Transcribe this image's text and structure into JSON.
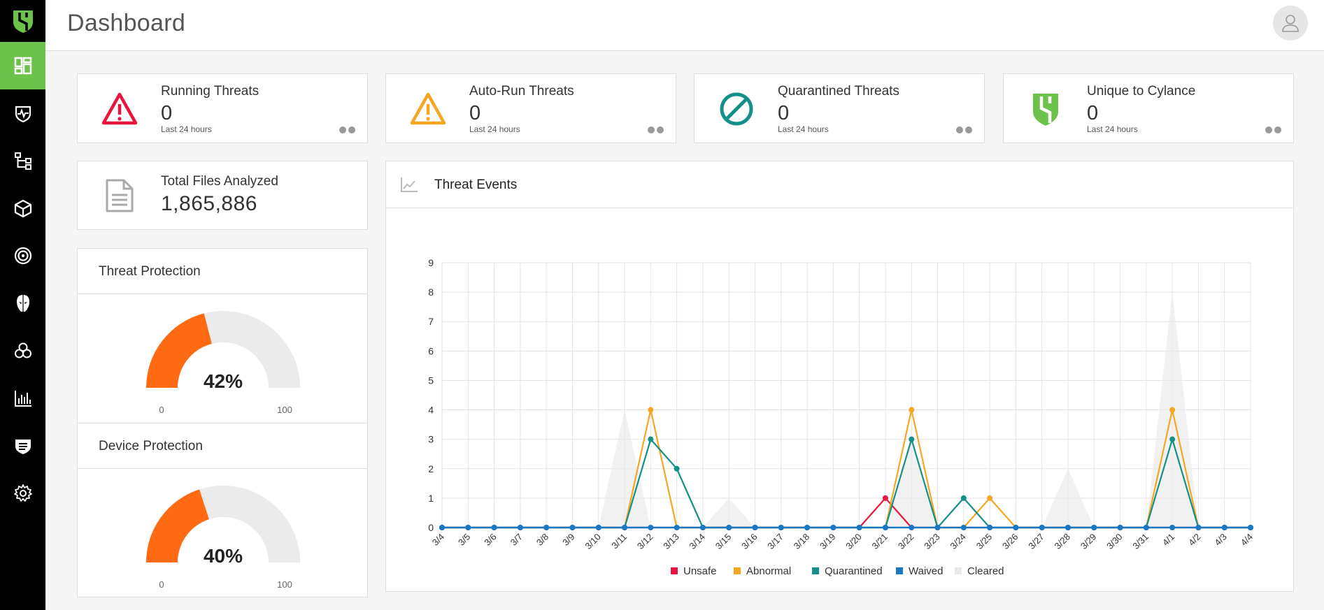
{
  "header": {
    "title": "Dashboard"
  },
  "sidebar": {
    "items": [
      {
        "name": "dashboard",
        "icon": "dashboard-icon",
        "active": true
      },
      {
        "name": "protection",
        "icon": "shield-pulse-icon"
      },
      {
        "name": "assets",
        "icon": "network-tree-icon"
      },
      {
        "name": "devices",
        "icon": "cube-icon"
      },
      {
        "name": "policies",
        "icon": "target-icon"
      },
      {
        "name": "threat-intelligence",
        "icon": "hacker-mask-icon"
      },
      {
        "name": "biohazard",
        "icon": "biohazard-icon"
      },
      {
        "name": "reports",
        "icon": "bar-chart-icon"
      },
      {
        "name": "lists",
        "icon": "shield-list-icon"
      },
      {
        "name": "settings",
        "icon": "gear-icon"
      }
    ]
  },
  "stats": [
    {
      "title": "Running Threats",
      "value": "0",
      "sub": "Last 24 hours",
      "icon": "warning-icon",
      "color": "#e8163e"
    },
    {
      "title": "Auto-Run Threats",
      "value": "0",
      "sub": "Last 24 hours",
      "icon": "warning-icon",
      "color": "#f5a623"
    },
    {
      "title": "Quarantined Threats",
      "value": "0",
      "sub": "Last 24 hours",
      "icon": "prohibited-icon",
      "color": "#149088"
    },
    {
      "title": "Unique to Cylance",
      "value": "0",
      "sub": "Last 24 hours",
      "icon": "cylance-shield-icon",
      "color": "#6cc24a"
    }
  ],
  "files": {
    "title": "Total Files Analyzed",
    "value": "1,865,886"
  },
  "gauges": [
    {
      "title": "Threat Protection",
      "value": 42,
      "label": "42%",
      "min": "0",
      "max": "100"
    },
    {
      "title": "Device Protection",
      "value": 40,
      "label": "40%",
      "min": "0",
      "max": "100"
    }
  ],
  "colors": {
    "gauge_fill": "#ff6a13",
    "gauge_track": "#ebebeb",
    "accent": "#6cc24a"
  },
  "chart_data": {
    "type": "line",
    "title": "Threat Events",
    "categories": [
      "3/4",
      "3/5",
      "3/6",
      "3/7",
      "3/8",
      "3/9",
      "3/10",
      "3/11",
      "3/12",
      "3/13",
      "3/14",
      "3/15",
      "3/16",
      "3/17",
      "3/18",
      "3/19",
      "3/20",
      "3/21",
      "3/22",
      "3/23",
      "3/24",
      "3/25",
      "3/26",
      "3/27",
      "3/28",
      "3/29",
      "3/30",
      "3/31",
      "4/1",
      "4/2",
      "4/3",
      "4/4"
    ],
    "ylim": [
      0,
      9
    ],
    "yticks": [
      0,
      1,
      2,
      3,
      4,
      5,
      6,
      7,
      8,
      9
    ],
    "grid": true,
    "legend_position": "bottom",
    "series": [
      {
        "name": "Unsafe",
        "color": "#e8163e",
        "values": [
          0,
          0,
          0,
          0,
          0,
          0,
          0,
          0,
          0,
          0,
          0,
          0,
          0,
          0,
          0,
          0,
          0,
          1,
          0,
          0,
          0,
          0,
          0,
          0,
          0,
          0,
          0,
          0,
          0,
          0,
          0,
          0
        ]
      },
      {
        "name": "Abnormal",
        "color": "#f5a623",
        "values": [
          0,
          0,
          0,
          0,
          0,
          0,
          0,
          0,
          4,
          0,
          0,
          0,
          0,
          0,
          0,
          0,
          0,
          0,
          4,
          0,
          0,
          1,
          0,
          0,
          0,
          0,
          0,
          0,
          4,
          0,
          0,
          0
        ]
      },
      {
        "name": "Quarantined",
        "color": "#149088",
        "values": [
          0,
          0,
          0,
          0,
          0,
          0,
          0,
          0,
          3,
          2,
          0,
          0,
          0,
          0,
          0,
          0,
          0,
          0,
          3,
          0,
          1,
          0,
          0,
          0,
          0,
          0,
          0,
          0,
          3,
          0,
          0,
          0
        ]
      },
      {
        "name": "Waived",
        "color": "#1a78c2",
        "values": [
          0,
          0,
          0,
          0,
          0,
          0,
          0,
          0,
          0,
          0,
          0,
          0,
          0,
          0,
          0,
          0,
          0,
          0,
          0,
          0,
          0,
          0,
          0,
          0,
          0,
          0,
          0,
          0,
          0,
          0,
          0,
          0
        ]
      },
      {
        "name": "Cleared",
        "color": "#eaeaea",
        "values": [
          0,
          0,
          0,
          0,
          0,
          0,
          0,
          4,
          0,
          0,
          0,
          1,
          0,
          0,
          0,
          0,
          0,
          0,
          3,
          0,
          0,
          0,
          0,
          0,
          2,
          0,
          0,
          0,
          8,
          0,
          0,
          0
        ]
      }
    ]
  }
}
